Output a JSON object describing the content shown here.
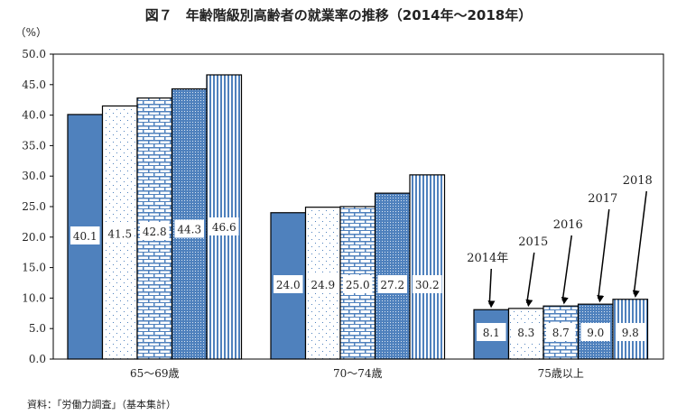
{
  "chart_data": {
    "type": "bar",
    "title": "図７　年齢階級別高齢者の就業率の推移（2014年～2018年）",
    "ylabel": "（%）",
    "xlabel": "",
    "ylim": [
      0,
      50
    ],
    "yticks": [
      "0.0",
      "5.0",
      "10.0",
      "15.0",
      "20.0",
      "25.0",
      "30.0",
      "35.0",
      "40.0",
      "45.0",
      "50.0"
    ],
    "categories": [
      "65～69歳",
      "70～74歳",
      "75歳以上"
    ],
    "series": [
      {
        "name": "2014年",
        "values": [
          40.1,
          24.0,
          8.1
        ],
        "labels": [
          "40.1",
          "24.0",
          "8.1"
        ]
      },
      {
        "name": "2015",
        "values": [
          41.5,
          24.9,
          8.3
        ],
        "labels": [
          "41.5",
          "24.9",
          "8.3"
        ]
      },
      {
        "name": "2016",
        "values": [
          42.8,
          25.0,
          8.7
        ],
        "labels": [
          "42.8",
          "25.0",
          "8.7"
        ]
      },
      {
        "name": "2017",
        "values": [
          44.3,
          27.2,
          9.0
        ],
        "labels": [
          "44.3",
          "27.2",
          "9.0"
        ]
      },
      {
        "name": "2018",
        "values": [
          46.6,
          30.2,
          9.8
        ],
        "labels": [
          "46.6",
          "30.2",
          "9.8"
        ]
      }
    ],
    "legend": "annotated arrows over 75歳以上 group",
    "grid": false
  },
  "source": "資料：「労働力調査」（基本集計）",
  "colors": {
    "accent": "#4f81bd",
    "light": "#dbe5f1"
  }
}
